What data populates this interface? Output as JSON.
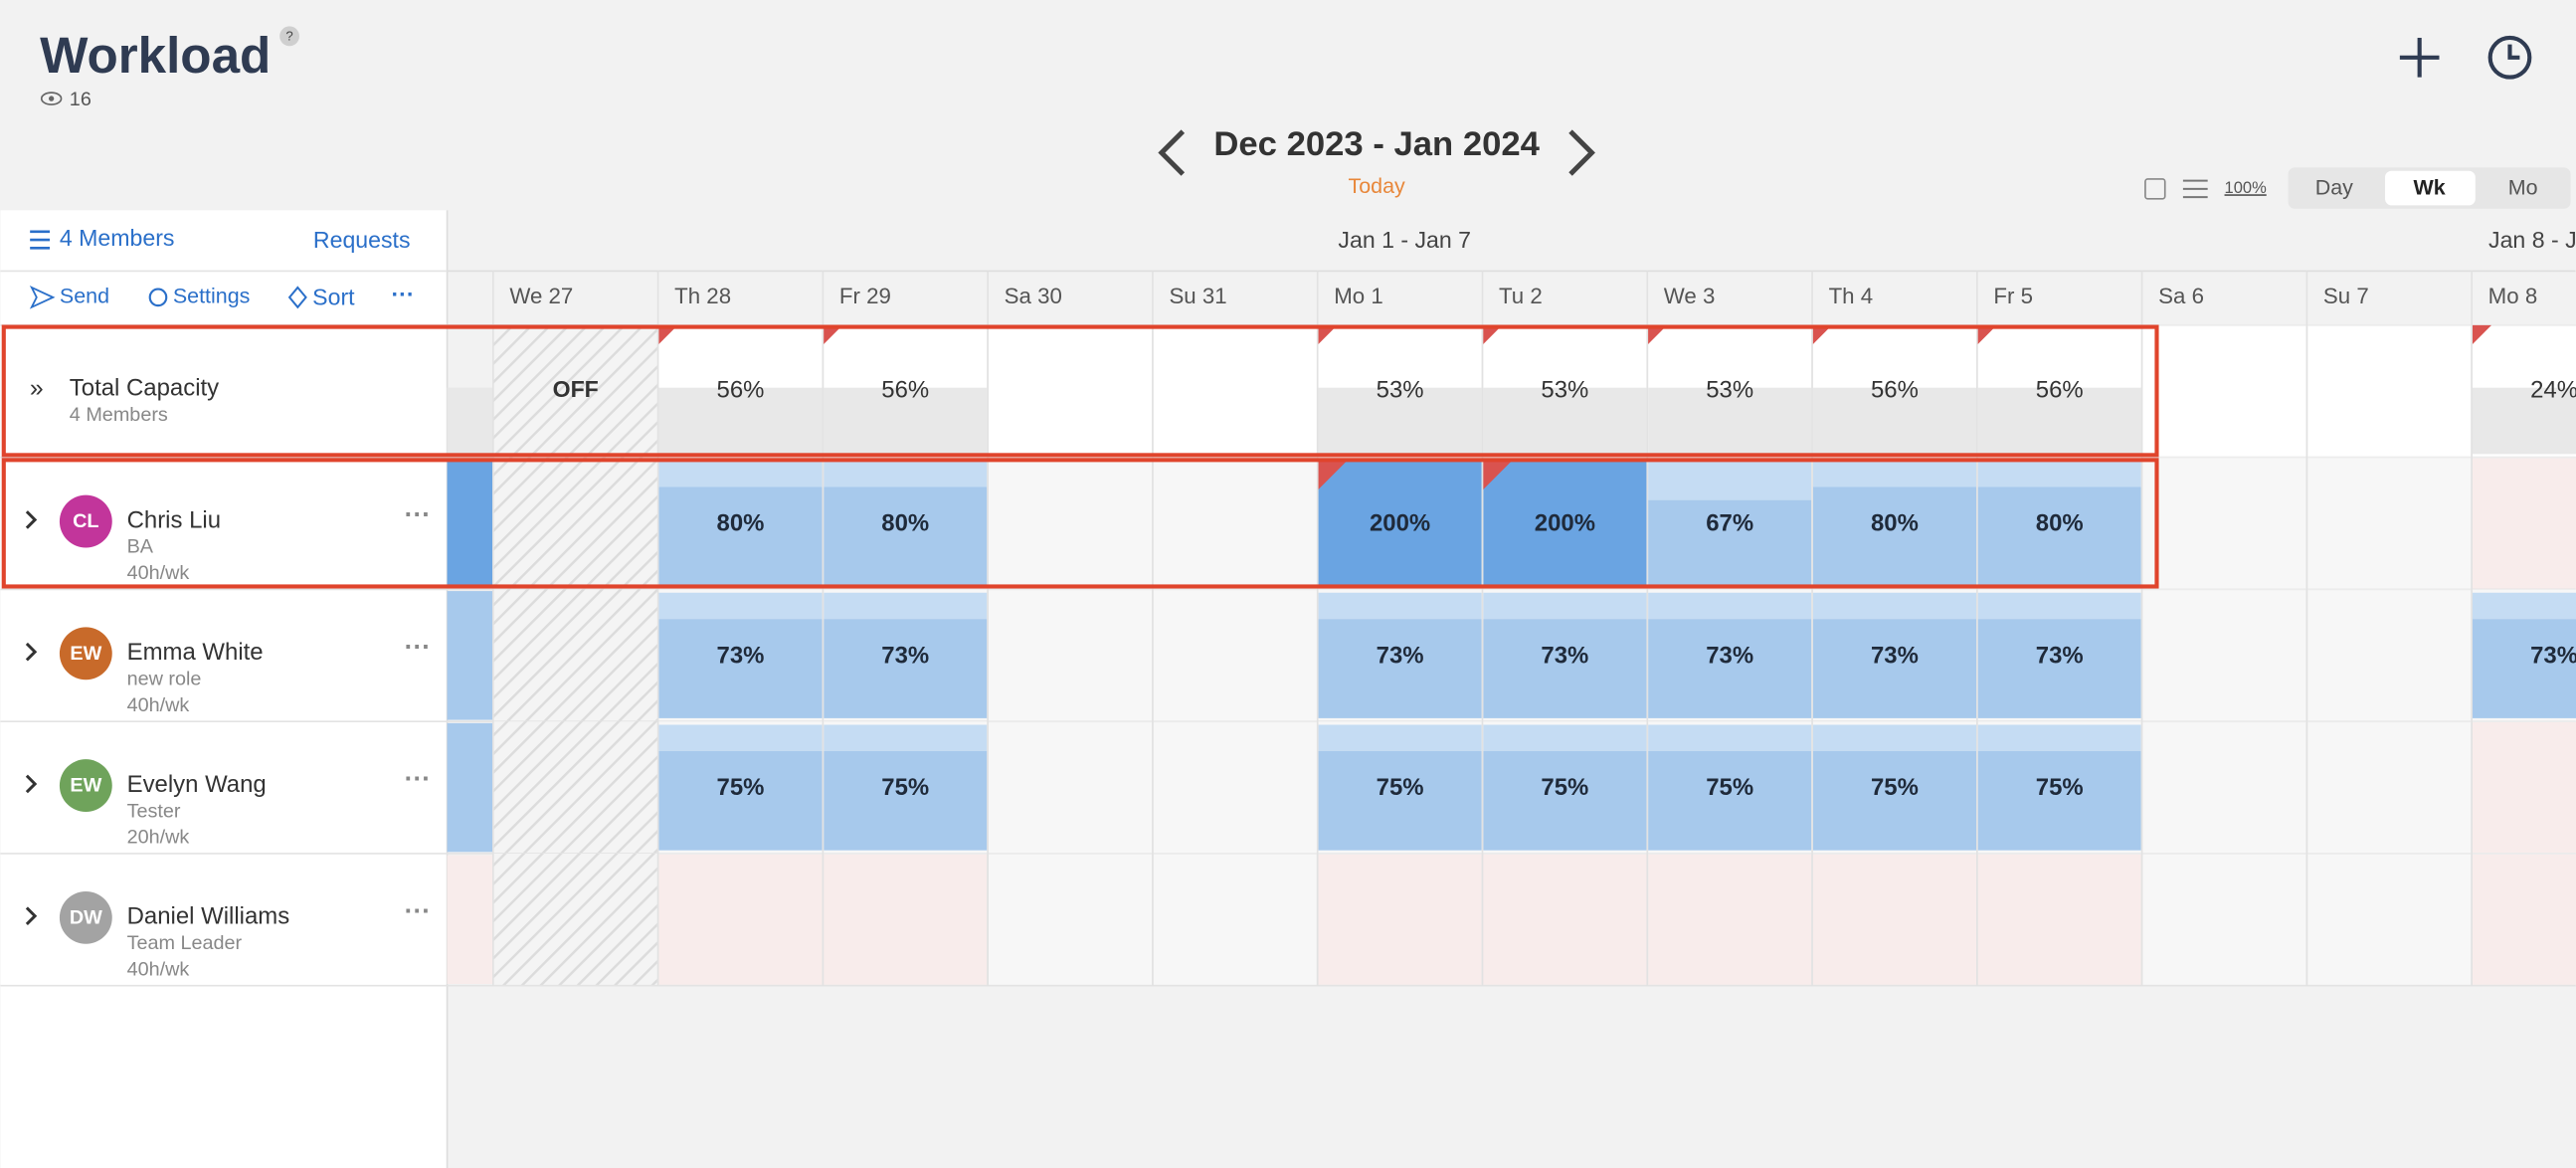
{
  "header": {
    "title": "Workload",
    "help": "?",
    "viewers": "16",
    "period": "Dec 2023 - Jan 2024",
    "today": "Today",
    "zoom": "100%",
    "views": [
      "Day",
      "Wk",
      "Mo"
    ]
  },
  "sidebar": {
    "members": "4 Members",
    "requests": "Requests",
    "actions": [
      "Send",
      "Settings",
      "Sort"
    ]
  },
  "weeks": [
    "Jan 1 - Jan 7",
    "Jan 8 - J"
  ],
  "days": [
    "We 27",
    "Th 28",
    "Fr 29",
    "Sa 30",
    "Su 31",
    "Mo 1",
    "Tu 2",
    "We 3",
    "Th 4",
    "Fr 5",
    "Sa 6",
    "Su 7",
    "Mo 8"
  ],
  "total": {
    "name": "Total Capacity",
    "sub": "4 Members",
    "cells": [
      "OFF",
      "56%",
      "56%",
      null,
      null,
      "53%",
      "53%",
      "53%",
      "56%",
      "56%",
      null,
      null,
      "24%"
    ]
  },
  "members": [
    {
      "initials": "CL",
      "avatar_color": "#c2359b",
      "name": "Chris Liu",
      "role": "BA",
      "hours": "40h/wk",
      "cells": [
        null,
        "80%",
        "80%",
        null,
        null,
        "200%",
        "200%",
        "67%",
        "80%",
        "80%",
        null,
        null,
        null
      ]
    },
    {
      "initials": "EW",
      "avatar_color": "#c86a2a",
      "name": "Emma White",
      "role": "new role",
      "hours": "40h/wk",
      "cells": [
        null,
        "73%",
        "73%",
        null,
        null,
        "73%",
        "73%",
        "73%",
        "73%",
        "73%",
        null,
        null,
        "73%"
      ]
    },
    {
      "initials": "EW",
      "avatar_color": "#6fa35b",
      "name": "Evelyn Wang",
      "role": "Tester",
      "hours": "20h/wk",
      "cells": [
        null,
        "75%",
        "75%",
        null,
        null,
        "75%",
        "75%",
        "75%",
        "75%",
        "75%",
        null,
        null,
        null
      ]
    },
    {
      "initials": "DW",
      "avatar_color": "#a3a3a3",
      "name": "Daniel Williams",
      "role": "Team Leader",
      "hours": "40h/wk",
      "cells": [
        null,
        null,
        null,
        null,
        null,
        null,
        null,
        null,
        null,
        null,
        null,
        null,
        null
      ]
    }
  ]
}
